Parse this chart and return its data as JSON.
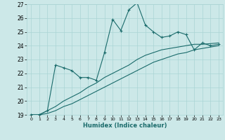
{
  "xlabel": "Humidex (Indice chaleur)",
  "xlim": [
    -0.5,
    23.5
  ],
  "ylim": [
    19,
    27
  ],
  "yticks": [
    19,
    20,
    21,
    22,
    23,
    24,
    25,
    26,
    27
  ],
  "xticks": [
    0,
    1,
    2,
    3,
    4,
    5,
    6,
    7,
    8,
    9,
    10,
    11,
    12,
    13,
    14,
    15,
    16,
    17,
    18,
    19,
    20,
    21,
    22,
    23
  ],
  "bg_color": "#cce8e8",
  "grid_color": "#aad4d4",
  "line_color": "#1a6b6b",
  "line1_x": [
    0,
    1,
    2,
    3,
    4,
    5,
    6,
    7,
    8,
    9,
    10,
    11,
    12,
    13,
    14,
    15,
    16,
    17,
    18,
    19,
    20,
    21,
    22,
    23
  ],
  "line1_y": [
    19.0,
    19.0,
    19.3,
    22.6,
    22.4,
    22.2,
    21.7,
    21.7,
    21.5,
    23.5,
    25.9,
    25.1,
    26.6,
    27.1,
    25.5,
    25.0,
    24.6,
    24.7,
    25.0,
    24.8,
    23.7,
    24.2,
    24.0,
    24.1
  ],
  "line2_x": [
    0,
    1,
    2,
    3,
    4,
    5,
    6,
    7,
    8,
    9,
    10,
    11,
    12,
    13,
    14,
    15,
    16,
    17,
    18,
    19,
    20,
    21,
    22,
    23
  ],
  "line2_y": [
    19.0,
    19.0,
    19.3,
    19.6,
    20.0,
    20.3,
    20.6,
    21.0,
    21.3,
    21.7,
    22.0,
    22.3,
    22.6,
    23.0,
    23.3,
    23.5,
    23.7,
    23.8,
    23.9,
    24.0,
    24.1,
    24.1,
    24.15,
    24.2
  ],
  "line3_x": [
    0,
    1,
    2,
    3,
    4,
    5,
    6,
    7,
    8,
    9,
    10,
    11,
    12,
    13,
    14,
    15,
    16,
    17,
    18,
    19,
    20,
    21,
    22,
    23
  ],
  "line3_y": [
    19.0,
    19.0,
    19.1,
    19.3,
    19.6,
    19.8,
    20.1,
    20.4,
    20.7,
    21.0,
    21.3,
    21.6,
    21.9,
    22.2,
    22.5,
    22.8,
    23.0,
    23.2,
    23.4,
    23.5,
    23.7,
    23.8,
    23.9,
    24.0
  ]
}
